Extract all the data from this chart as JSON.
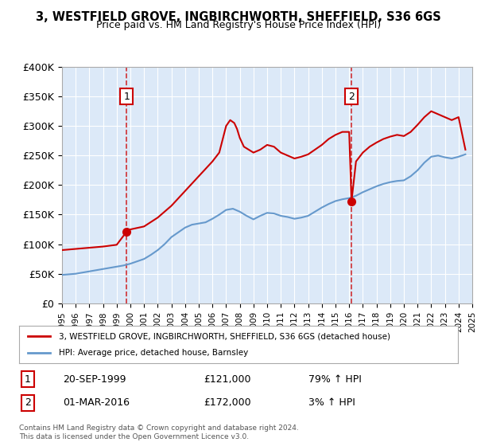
{
  "title": "3, WESTFIELD GROVE, INGBIRCHWORTH, SHEFFIELD, S36 6GS",
  "subtitle": "Price paid vs. HM Land Registry's House Price Index (HPI)",
  "legend_line1": "3, WESTFIELD GROVE, INGBIRCHWORTH, SHEFFIELD, S36 6GS (detached house)",
  "legend_line2": "HPI: Average price, detached house, Barnsley",
  "sale1_date": "20-SEP-1999",
  "sale1_price": 121000,
  "sale1_label": "79% ↑ HPI",
  "sale2_date": "01-MAR-2016",
  "sale2_price": 172000,
  "sale2_label": "3% ↑ HPI",
  "footnote": "Contains HM Land Registry data © Crown copyright and database right 2024.\nThis data is licensed under the Open Government Licence v3.0.",
  "ylim": [
    0,
    400000
  ],
  "yticks": [
    0,
    50000,
    100000,
    150000,
    200000,
    250000,
    300000,
    350000,
    400000
  ],
  "ytick_labels": [
    "£0",
    "£50K",
    "£100K",
    "£150K",
    "£200K",
    "£250K",
    "£300K",
    "£350K",
    "£400K"
  ],
  "bg_color": "#dce9f8",
  "plot_bg": "#dce9f8",
  "red_color": "#cc0000",
  "blue_color": "#6699cc",
  "marker_color": "#cc0000",
  "sale1_x": 1999.72,
  "sale2_x": 2016.17,
  "hpi_x": [
    1995,
    1995.5,
    1996,
    1996.5,
    1997,
    1997.5,
    1998,
    1998.5,
    1999,
    1999.5,
    2000,
    2000.5,
    2001,
    2001.5,
    2002,
    2002.5,
    2003,
    2003.5,
    2004,
    2004.5,
    2005,
    2005.5,
    2006,
    2006.5,
    2007,
    2007.5,
    2008,
    2008.5,
    2009,
    2009.5,
    2010,
    2010.5,
    2011,
    2011.5,
    2012,
    2012.5,
    2013,
    2013.5,
    2014,
    2014.5,
    2015,
    2015.5,
    2016,
    2016.5,
    2017,
    2017.5,
    2018,
    2018.5,
    2019,
    2019.5,
    2020,
    2020.5,
    2021,
    2021.5,
    2022,
    2022.5,
    2023,
    2023.5,
    2024,
    2024.5
  ],
  "hpi_y": [
    48000,
    49000,
    50000,
    52000,
    54000,
    56000,
    58000,
    60000,
    62000,
    64000,
    67000,
    71000,
    75000,
    82000,
    90000,
    100000,
    112000,
    120000,
    128000,
    133000,
    135000,
    137000,
    143000,
    150000,
    158000,
    160000,
    155000,
    148000,
    142000,
    148000,
    153000,
    152000,
    148000,
    146000,
    143000,
    145000,
    148000,
    155000,
    162000,
    168000,
    173000,
    176000,
    178000,
    182000,
    188000,
    193000,
    198000,
    202000,
    205000,
    207000,
    208000,
    215000,
    225000,
    238000,
    248000,
    250000,
    247000,
    245000,
    248000,
    252000
  ],
  "prop_x": [
    1995,
    1996,
    1997,
    1998,
    1999,
    1999.72,
    2000,
    2001,
    2002,
    2003,
    2004,
    2005,
    2006,
    2006.5,
    2007,
    2007.3,
    2007.6,
    2007.8,
    2008,
    2008.3,
    2009,
    2009.5,
    2010,
    2010.5,
    2011,
    2011.5,
    2012,
    2012.5,
    2013,
    2013.5,
    2014,
    2014.5,
    2015,
    2015.5,
    2016,
    2016.17,
    2016.5,
    2017,
    2017.5,
    2018,
    2018.5,
    2019,
    2019.5,
    2020,
    2020.5,
    2021,
    2021.5,
    2022,
    2022.5,
    2023,
    2023.5,
    2024,
    2024.5
  ],
  "prop_y": [
    90000,
    92000,
    94000,
    96000,
    99000,
    121000,
    125000,
    130000,
    145000,
    165000,
    190000,
    215000,
    240000,
    255000,
    300000,
    310000,
    305000,
    295000,
    280000,
    265000,
    255000,
    260000,
    268000,
    265000,
    255000,
    250000,
    245000,
    248000,
    252000,
    260000,
    268000,
    278000,
    285000,
    290000,
    290000,
    172000,
    240000,
    255000,
    265000,
    272000,
    278000,
    282000,
    285000,
    283000,
    290000,
    302000,
    315000,
    325000,
    320000,
    315000,
    310000,
    315000,
    260000
  ]
}
